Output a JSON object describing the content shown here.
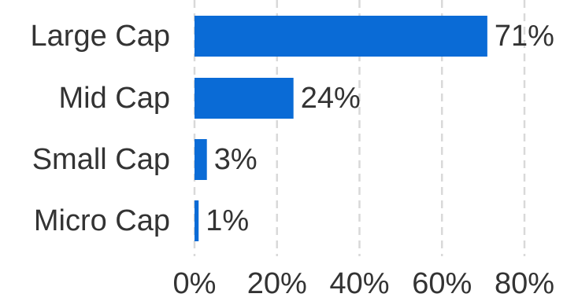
{
  "chart_data": {
    "type": "bar",
    "orientation": "horizontal",
    "categories": [
      "Large Cap",
      "Mid Cap",
      "Small Cap",
      "Micro Cap"
    ],
    "values": [
      71,
      24,
      3,
      1
    ],
    "value_labels": [
      "71%",
      "24%",
      "3%",
      "1%"
    ],
    "x_ticks": [
      0,
      20,
      40,
      60,
      80
    ],
    "x_tick_labels": [
      "0%",
      "20%",
      "40%",
      "60%",
      "80%"
    ],
    "xlim": [
      0,
      80
    ],
    "grid": "vertical-dashed",
    "bar_color": "#0a6bd6",
    "title": "",
    "xlabel": "",
    "ylabel": ""
  }
}
